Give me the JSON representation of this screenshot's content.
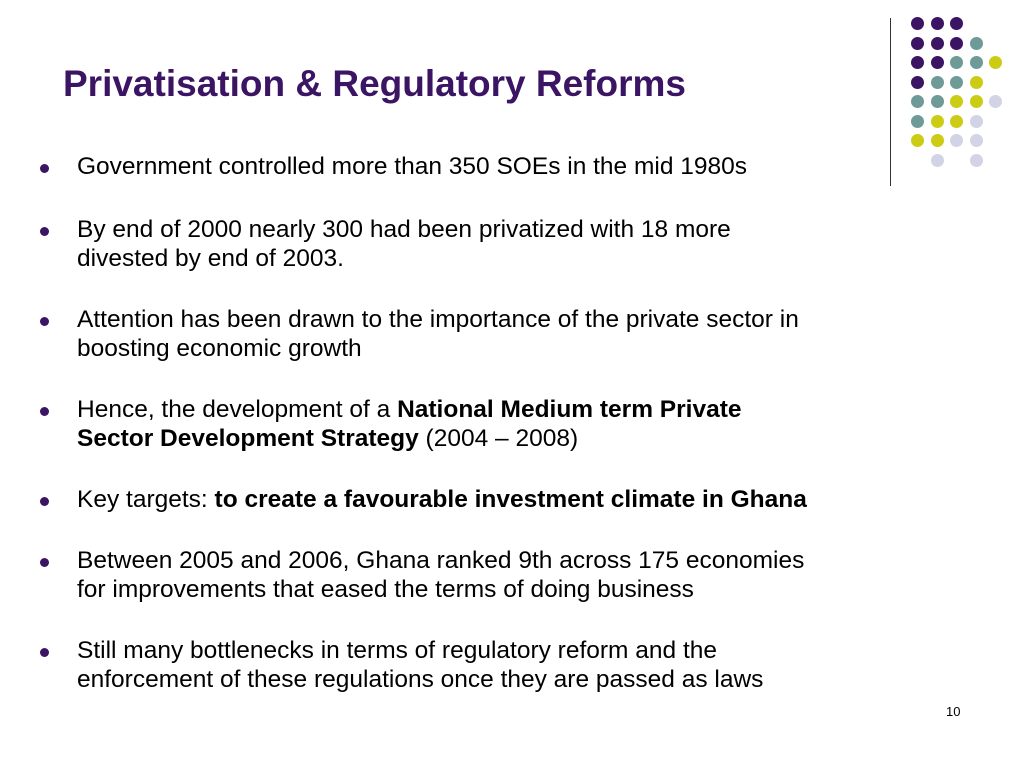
{
  "slide": {
    "title": "Privatisation & Regulatory Reforms",
    "page_number": "10",
    "colors": {
      "title": "#3b1463",
      "bullet": "#3b1463",
      "divider": "#333333",
      "dot_purple": "#3b1463",
      "dot_teal": "#6e9a98",
      "dot_lime": "#cccc14",
      "dot_lavender": "#d3d3e6"
    }
  },
  "bullets": [
    {
      "runs": [
        {
          "text": "Government controlled more than 350 SOEs in the mid 1980s",
          "bold": false
        }
      ]
    },
    {
      "runs": [
        {
          "text": "By end of 2000 nearly 300 had been privatized with 18 more",
          "bold": false
        },
        {
          "text": "divested by end of 2003.",
          "bold": false,
          "newline": true
        }
      ]
    },
    {
      "runs": [
        {
          "text": "Attention has been drawn to the importance of the private sector in",
          "bold": false
        },
        {
          "text": "boosting economic growth",
          "bold": false,
          "newline": true
        }
      ]
    },
    {
      "runs": [
        {
          "text": "Hence, the development of a ",
          "bold": false
        },
        {
          "text": "National Medium term Private",
          "bold": true
        },
        {
          "text": "Sector Development Strategy",
          "bold": true,
          "newline": true
        },
        {
          "text": " (2004 – 2008)",
          "bold": false
        }
      ]
    },
    {
      "runs": [
        {
          "text": "Key targets: ",
          "bold": false
        },
        {
          "text": "to create a favourable investment climate in Ghana",
          "bold": true
        }
      ]
    },
    {
      "runs": [
        {
          "text": "Between 2005 and 2006, Ghana ranked 9th across 175 economies",
          "bold": false
        },
        {
          "text": "for improvements that eased the terms of doing business",
          "bold": false,
          "newline": true
        }
      ]
    },
    {
      "runs": [
        {
          "text": "Still many bottlenecks in terms of regulatory reform and the",
          "bold": false
        },
        {
          "text": "enforcement of these regulations once they are passed as laws",
          "bold": false,
          "newline": true
        }
      ]
    }
  ],
  "dot_grid": [
    [
      "purple",
      "purple",
      "purple",
      "",
      ""
    ],
    [
      "purple",
      "purple",
      "purple",
      "teal",
      ""
    ],
    [
      "purple",
      "purple",
      "teal",
      "teal",
      "lime"
    ],
    [
      "purple",
      "teal",
      "teal",
      "lime",
      ""
    ],
    [
      "teal",
      "teal",
      "lime",
      "lime",
      "lavender"
    ],
    [
      "teal",
      "lime",
      "lime",
      "lavender",
      ""
    ],
    [
      "lime",
      "lime",
      "lavender",
      "lavender",
      ""
    ],
    [
      "",
      "lavender",
      "",
      "lavender",
      ""
    ]
  ]
}
